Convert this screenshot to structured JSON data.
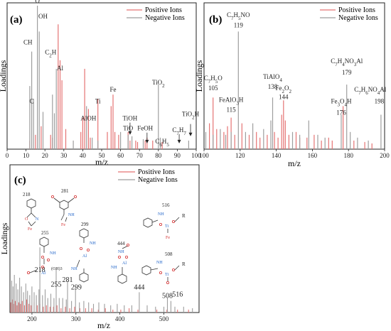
{
  "colors": {
    "positive": "#e57373",
    "negative": "#9e9e9e",
    "axis": "#222222",
    "molecule": "#333333",
    "oxygen": "#d32f2f",
    "nitrogen": "#1e63c8"
  },
  "chart_data": [
    {
      "panel": "(a)",
      "type": "bar",
      "xlabel": "m/z",
      "ylabel": "Loadings",
      "xlim": [
        0,
        100
      ],
      "x_ticks": [
        0,
        10,
        20,
        30,
        40,
        50,
        60,
        70,
        80,
        90,
        100
      ],
      "legend": {
        "placement": "top-right",
        "entries": [
          "Positive Ions",
          "Negative Ions"
        ]
      },
      "series": [
        {
          "name": "Positive Ions",
          "x": [
            12,
            15,
            18,
            23,
            24,
            27,
            28,
            29,
            31,
            39,
            40,
            41,
            43,
            44,
            48,
            53,
            55,
            56,
            57,
            59,
            64,
            65,
            68,
            69,
            73,
            74,
            77,
            82
          ],
          "y": [
            0.06,
            0.1,
            0.16,
            0.1,
            0.08,
            0.87,
            0.62,
            0.48,
            0.14,
            0.12,
            0.22,
            0.56,
            0.28,
            0.08,
            0.35,
            0.12,
            0.3,
            0.38,
            0.12,
            0.1,
            0.12,
            0.06,
            0.06,
            0.05,
            0.06,
            0.08,
            0.06,
            0.05
          ]
        },
        {
          "name": "Negative Ions",
          "x": [
            12,
            13,
            14,
            16,
            17,
            19,
            24,
            25,
            26,
            35,
            42,
            45,
            48,
            60,
            64,
            66,
            72,
            80,
            81,
            96
          ],
          "y": [
            0.44,
            0.68,
            0.35,
            1.0,
            0.82,
            0.26,
            0.38,
            0.25,
            0.56,
            0.06,
            0.3,
            0.08,
            0.06,
            0.12,
            0.1,
            0.09,
            0.07,
            0.45,
            0.08,
            0.06
          ]
        }
      ],
      "annotations": [
        {
          "html": "C",
          "x": 13,
          "y": 0.32
        },
        {
          "html": "CH",
          "x": 11,
          "y": 0.73
        },
        {
          "html": "O",
          "x": 16,
          "y": 1.02
        },
        {
          "html": "OH",
          "x": 19,
          "y": 0.91
        },
        {
          "html": "C<tspan baseline-shift=\"sub\" font-size=\"7\">2</tspan>H",
          "x": 23,
          "y": 0.66
        },
        {
          "html": "Al",
          "x": 28,
          "y": 0.55
        },
        {
          "html": "AlOH",
          "x": 43,
          "y": 0.2
        },
        {
          "html": "Ti",
          "x": 48,
          "y": 0.32
        },
        {
          "html": "Fe",
          "x": 56,
          "y": 0.4
        },
        {
          "html": "TiO",
          "x": 64,
          "y": 0.13
        },
        {
          "html": "TiOH",
          "x": 65,
          "y": 0.2
        },
        {
          "html": "FeOH",
          "x": 73,
          "y": 0.13
        },
        {
          "html": "TiO<tspan baseline-shift=\"sub\" font-size=\"7\">2</tspan>",
          "x": 80,
          "y": 0.45
        },
        {
          "html": "C<tspan baseline-shift=\"sub\" font-size=\"7\">6</tspan>H<tspan baseline-shift=\"sub\" font-size=\"7\">5</tspan>",
          "x": 82,
          "y": 0.04
        },
        {
          "html": "C<tspan baseline-shift=\"sub\" font-size=\"7\">7</tspan>H<tspan baseline-shift=\"sub\" font-size=\"7\">7</tspan>",
          "x": 91,
          "y": 0.12
        },
        {
          "html": "TiO<tspan baseline-shift=\"sub\" font-size=\"7\">2</tspan>H",
          "x": 97,
          "y": 0.23
        }
      ],
      "arrows": [
        {
          "x": 65,
          "y_from": 0.2,
          "y_to": 0.11
        },
        {
          "x": 74,
          "y_from": 0.13,
          "y_to": 0.05
        },
        {
          "x": 91,
          "y_from": 0.12,
          "y_to": 0.05
        },
        {
          "x": 97,
          "y_from": 0.19,
          "y_to": 0.1
        }
      ]
    },
    {
      "panel": "(b)",
      "type": "bar",
      "xlabel": "m/z",
      "ylabel": "Loadings",
      "xlim": [
        100,
        200
      ],
      "x_ticks": [
        100,
        120,
        140,
        160,
        180,
        200
      ],
      "legend": {
        "placement": "top-right",
        "entries": [
          "Positive Ions",
          "Negative Ions"
        ]
      },
      "series": [
        {
          "name": "Positive Ions",
          "x": [
            103,
            105,
            107,
            111,
            113,
            115,
            117,
            121,
            125,
            129,
            131,
            135,
            139,
            141,
            143,
            144,
            145,
            147,
            151,
            153,
            157,
            161,
            165,
            169,
            171,
            177,
            183,
            189,
            193
          ],
          "y": [
            0.18,
            0.36,
            0.14,
            0.12,
            0.16,
            0.22,
            0.1,
            0.18,
            0.1,
            0.12,
            0.08,
            0.1,
            0.12,
            0.08,
            0.24,
            0.34,
            0.2,
            0.1,
            0.12,
            0.08,
            0.08,
            0.1,
            0.06,
            0.08,
            0.06,
            0.3,
            0.06,
            0.05,
            0.04
          ]
        },
        {
          "name": "Negative Ions",
          "x": [
            101,
            105,
            109,
            112,
            115,
            119,
            123,
            127,
            133,
            137,
            138,
            149,
            153,
            158,
            163,
            167,
            176,
            179,
            181,
            185,
            191,
            198
          ],
          "y": [
            0.12,
            0.1,
            0.14,
            0.1,
            0.12,
            0.82,
            0.12,
            0.18,
            0.14,
            0.2,
            0.36,
            0.12,
            0.1,
            0.2,
            0.1,
            0.08,
            0.24,
            0.45,
            0.12,
            0.08,
            0.06,
            0.24
          ]
        }
      ],
      "annotations": [
        {
          "html": "C<tspan baseline-shift=\"sub\" font-size=\"7\">7</tspan>H<tspan baseline-shift=\"sub\" font-size=\"7\">5</tspan>NO",
          "x": 119,
          "y": 0.92
        },
        {
          "html": "119",
          "x": 119,
          "y": 0.85
        },
        {
          "html": "C<tspan baseline-shift=\"sub\" font-size=\"7\">7</tspan>H<tspan baseline-shift=\"sub\" font-size=\"7\">5</tspan>O",
          "x": 105,
          "y": 0.48
        },
        {
          "html": "105",
          "x": 105,
          "y": 0.41
        },
        {
          "html": "FeAlO<tspan baseline-shift=\"sub\" font-size=\"7\">3</tspan>H",
          "x": 115,
          "y": 0.33
        },
        {
          "html": "115",
          "x": 115,
          "y": 0.26
        },
        {
          "html": "TiAlO<tspan baseline-shift=\"sub\" font-size=\"7\">4</tspan>",
          "x": 138,
          "y": 0.49
        },
        {
          "html": "138",
          "x": 138,
          "y": 0.42
        },
        {
          "html": "Fe<tspan baseline-shift=\"sub\" font-size=\"7\">2</tspan>O<tspan baseline-shift=\"sub\" font-size=\"7\">2</tspan>",
          "x": 144,
          "y": 0.41
        },
        {
          "html": "144",
          "x": 144,
          "y": 0.35
        },
        {
          "html": "C<tspan baseline-shift=\"sub\" font-size=\"7\">7</tspan>H<tspan baseline-shift=\"sub\" font-size=\"7\">4</tspan>NO<tspan baseline-shift=\"sub\" font-size=\"7\">3</tspan>Al",
          "x": 179,
          "y": 0.6
        },
        {
          "html": "179",
          "x": 179,
          "y": 0.52
        },
        {
          "html": "Fe<tspan baseline-shift=\"sub\" font-size=\"7\">3</tspan>O<tspan baseline-shift=\"sub\" font-size=\"7\">4</tspan>H",
          "x": 176,
          "y": 0.32
        },
        {
          "html": "176",
          "x": 176,
          "y": 0.24
        },
        {
          "html": "C<tspan baseline-shift=\"sub\" font-size=\"7\">7</tspan>H<tspan baseline-shift=\"sub\" font-size=\"7\">6</tspan>NO<tspan baseline-shift=\"sub\" font-size=\"7\">4</tspan>Al",
          "x": 192,
          "y": 0.4
        },
        {
          "html": "198",
          "x": 197,
          "y": 0.32
        }
      ]
    },
    {
      "panel": "(c)",
      "type": "bar",
      "xlabel": "m/z",
      "ylabel": "Loadings",
      "xlim": [
        150,
        580
      ],
      "x_ticks": [
        200,
        300,
        400,
        500
      ],
      "legend": {
        "placement": "top-right",
        "entries": [
          "Positive Ions",
          "Negative Ions"
        ]
      },
      "series": [
        {
          "name": "Positive Ions",
          "x": [
            152,
            155,
            158,
            162,
            166,
            170,
            174,
            178,
            183,
            188,
            193,
            198,
            205,
            212,
            218,
            226,
            233,
            241,
            249,
            257,
            266,
            276,
            286,
            297,
            309,
            322,
            336,
            351,
            367,
            384,
            402,
            421,
            441,
            462,
            484,
            507,
            531,
            556
          ],
          "y": [
            0.07,
            0.09,
            0.06,
            0.08,
            0.05,
            0.07,
            0.06,
            0.08,
            0.05,
            0.09,
            0.06,
            0.05,
            0.07,
            0.05,
            0.06,
            0.04,
            0.05,
            0.04,
            0.04,
            0.05,
            0.03,
            0.04,
            0.03,
            0.04,
            0.03,
            0.03,
            0.03,
            0.02,
            0.03,
            0.02,
            0.02,
            0.03,
            0.02,
            0.02,
            0.02,
            0.02,
            0.02,
            0.02
          ]
        },
        {
          "name": "Negative Ions",
          "x": [
            154,
            157,
            160,
            164,
            168,
            172,
            176,
            181,
            186,
            190,
            195,
            200,
            205,
            210,
            216,
            218,
            224,
            230,
            236,
            243,
            250,
            255,
            262,
            270,
            278,
            281,
            290,
            299,
            308,
            318,
            329,
            340,
            352,
            365,
            379,
            394,
            410,
            427,
            444,
            462,
            481,
            500,
            508,
            516,
            525,
            545,
            565
          ],
          "y": [
            0.22,
            0.18,
            0.26,
            0.2,
            0.16,
            0.24,
            0.18,
            0.14,
            0.2,
            0.15,
            0.12,
            0.18,
            0.14,
            0.12,
            0.16,
            0.45,
            0.12,
            0.16,
            0.1,
            0.13,
            0.1,
            0.3,
            0.1,
            0.1,
            0.09,
            0.22,
            0.08,
            0.18,
            0.07,
            0.08,
            0.07,
            0.06,
            0.07,
            0.06,
            0.05,
            0.06,
            0.05,
            0.05,
            0.14,
            0.05,
            0.04,
            0.04,
            0.1,
            0.08,
            0.04,
            0.04,
            0.03
          ]
        }
      ],
      "annotations": [
        {
          "html": "218",
          "x": 218,
          "y": 0.28
        },
        {
          "html": "255",
          "x": 255,
          "y": 0.18
        },
        {
          "html": "281",
          "x": 281,
          "y": 0.21
        },
        {
          "html": "299",
          "x": 301,
          "y": 0.16
        },
        {
          "html": "444",
          "x": 444,
          "y": 0.16
        },
        {
          "html": "508",
          "x": 508,
          "y": 0.1
        },
        {
          "html": "516",
          "x": 531,
          "y": 0.11
        }
      ],
      "structure_labels": [
        "218",
        "281",
        "255",
        "299",
        "516",
        "444",
        "508"
      ],
      "structure_atoms": {
        "fe": "Fe",
        "al": "Al",
        "ti": "Ti",
        "n": "N",
        "nh": "NH",
        "o": "O",
        "r": "R",
        "oh3": "(OH)3"
      }
    }
  ]
}
